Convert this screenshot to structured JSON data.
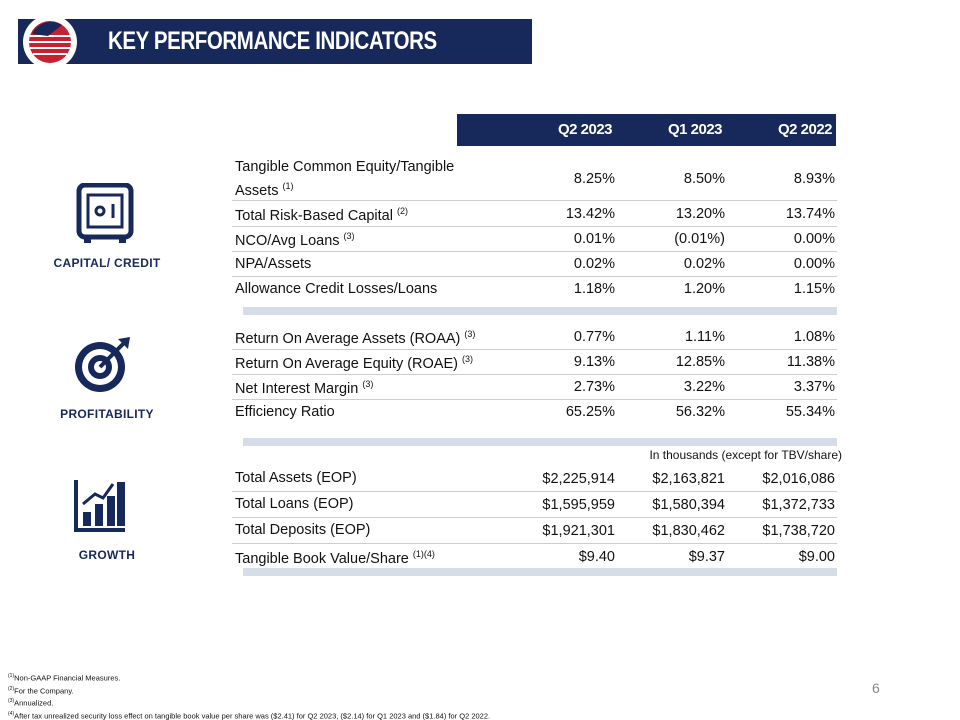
{
  "header": {
    "title": "KEY PERFORMANCE INDICATORS"
  },
  "columns": [
    "Q2 2023",
    "Q1 2023",
    "Q2 2022"
  ],
  "sections": [
    {
      "label": "CAPITAL/ CREDIT",
      "rows": [
        {
          "label": "Tangible Common Equity/Tangible Assets",
          "note": "(1)",
          "values": [
            "8.25%",
            "8.50%",
            "8.93%"
          ]
        },
        {
          "label": "Total Risk-Based Capital",
          "note": "(2)",
          "values": [
            "13.42%",
            "13.20%",
            "13.74%"
          ]
        },
        {
          "label": "NCO/Avg Loans",
          "note": "(3)",
          "values": [
            "0.01%",
            "(0.01%)",
            "0.00%"
          ]
        },
        {
          "label": "NPA/Assets",
          "values": [
            "0.02%",
            "0.02%",
            "0.00%"
          ]
        },
        {
          "label": "Allowance Credit Losses/Loans",
          "values": [
            "1.18%",
            "1.20%",
            "1.15%"
          ]
        }
      ]
    },
    {
      "label": "PROFITABILITY",
      "rows": [
        {
          "label": "Return On Average Assets (ROAA)",
          "note": "(3)",
          "values": [
            "0.77%",
            "1.11%",
            "1.08%"
          ]
        },
        {
          "label": "Return On Average Equity (ROAE)",
          "note": "(3)",
          "values": [
            "9.13%",
            "12.85%",
            "11.38%"
          ]
        },
        {
          "label": "Net Interest Margin",
          "note": "(3)",
          "values": [
            "2.73%",
            "3.22%",
            "3.37%"
          ]
        },
        {
          "label": "Efficiency Ratio",
          "values": [
            "65.25%",
            "56.32%",
            "55.34%"
          ]
        }
      ]
    },
    {
      "label": "GROWTH",
      "units": "In thousands (except for TBV/share)",
      "rows": [
        {
          "label": "Total Assets (EOP)",
          "values": [
            "$2,225,914",
            "$2,163,821",
            "$2,016,086"
          ]
        },
        {
          "label": "Total Loans (EOP)",
          "values": [
            "$1,595,959",
            "$1,580,394",
            "$1,372,733"
          ]
        },
        {
          "label": "Total Deposits (EOP)",
          "values": [
            "$1,921,301",
            "$1,830,462",
            "$1,738,720"
          ]
        },
        {
          "label": "Tangible Book Value/Share",
          "note": "(1)(4)",
          "values": [
            "$9.40",
            "$9.37",
            "$9.00"
          ]
        }
      ]
    }
  ],
  "footnotes": [
    {
      "mark": "(1)",
      "text": "Non-GAAP Financial Measures."
    },
    {
      "mark": "(2)",
      "text": "For the Company."
    },
    {
      "mark": "(3)",
      "text": "Annualized."
    },
    {
      "mark": "(4)",
      "text": "After tax unrealized security loss effect on tangible book value per share was ($2.41) for Q2 2023, ($2.14) for Q1 2023 and ($1.84) for Q2 2022."
    }
  ],
  "page_number": "6"
}
